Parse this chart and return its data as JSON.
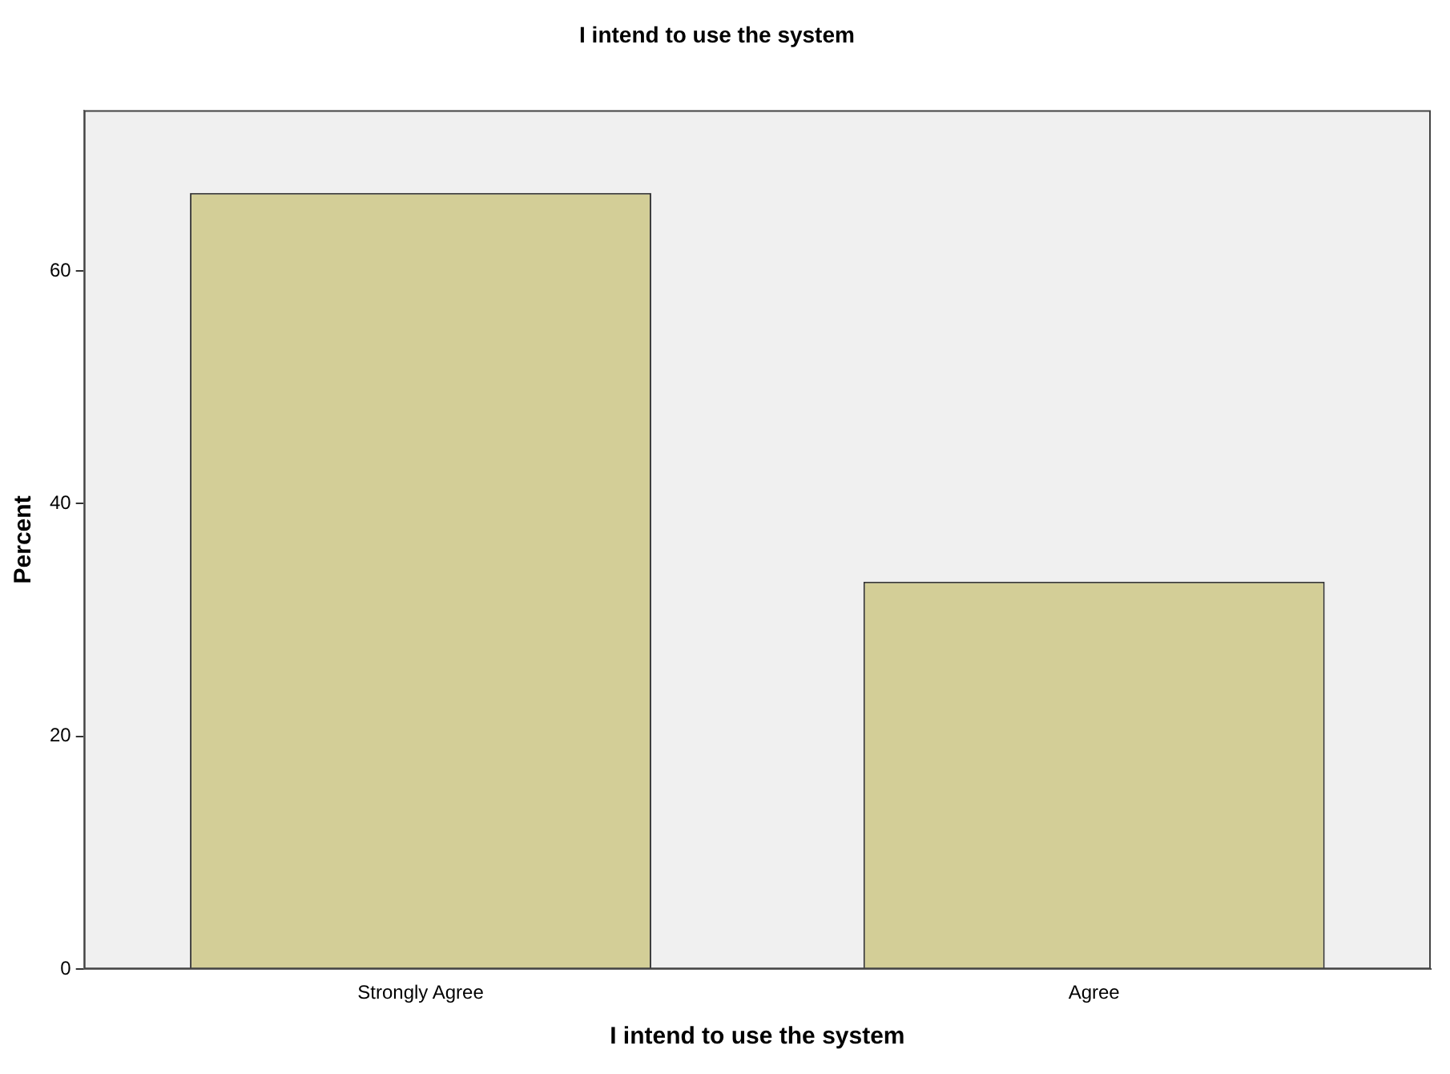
{
  "chart_data": {
    "type": "bar",
    "title": "I intend to use the system",
    "xlabel": "I intend to use the system",
    "ylabel": "Percent",
    "categories": [
      "Strongly Agree",
      "Agree"
    ],
    "values": [
      66.7,
      33.3
    ],
    "color": "#d3ce97",
    "ylim": [
      0,
      73.8
    ],
    "yticks": [
      0,
      20,
      40,
      60
    ],
    "grid": false,
    "legend": false
  }
}
